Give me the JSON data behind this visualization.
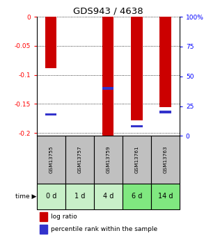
{
  "title": "GDS943 / 4638",
  "samples": [
    "GSM13755",
    "GSM13757",
    "GSM13759",
    "GSM13761",
    "GSM13763"
  ],
  "time_labels": [
    "0 d",
    "1 d",
    "4 d",
    "6 d",
    "14 d"
  ],
  "log_ratios": [
    -0.088,
    0.0,
    -0.205,
    -0.178,
    -0.155
  ],
  "percentile_ranks": [
    18,
    0,
    40,
    8,
    20
  ],
  "bar_color": "#cc0000",
  "blue_color": "#3333cc",
  "ylim_left": [
    -0.205,
    0.0
  ],
  "ylim_right": [
    0,
    100
  ],
  "yticks_left": [
    0.0,
    -0.05,
    -0.1,
    -0.15,
    -0.2
  ],
  "ytick_labels_left": [
    "0",
    "-0.05",
    "-0.1",
    "-0.15",
    "-0.2"
  ],
  "yticks_right": [
    0,
    25,
    50,
    75,
    100
  ],
  "ytick_labels_right": [
    "0",
    "25",
    "50",
    "75",
    "100%"
  ],
  "sample_bg": "#c0c0c0",
  "time_bg_colors": [
    "#c8f0c8",
    "#c8f0c8",
    "#c8f0c8",
    "#80e880",
    "#80e880"
  ],
  "bar_width": 0.4,
  "blue_marker_thickness": 0.004,
  "figsize": [
    2.93,
    3.45
  ],
  "dpi": 100
}
